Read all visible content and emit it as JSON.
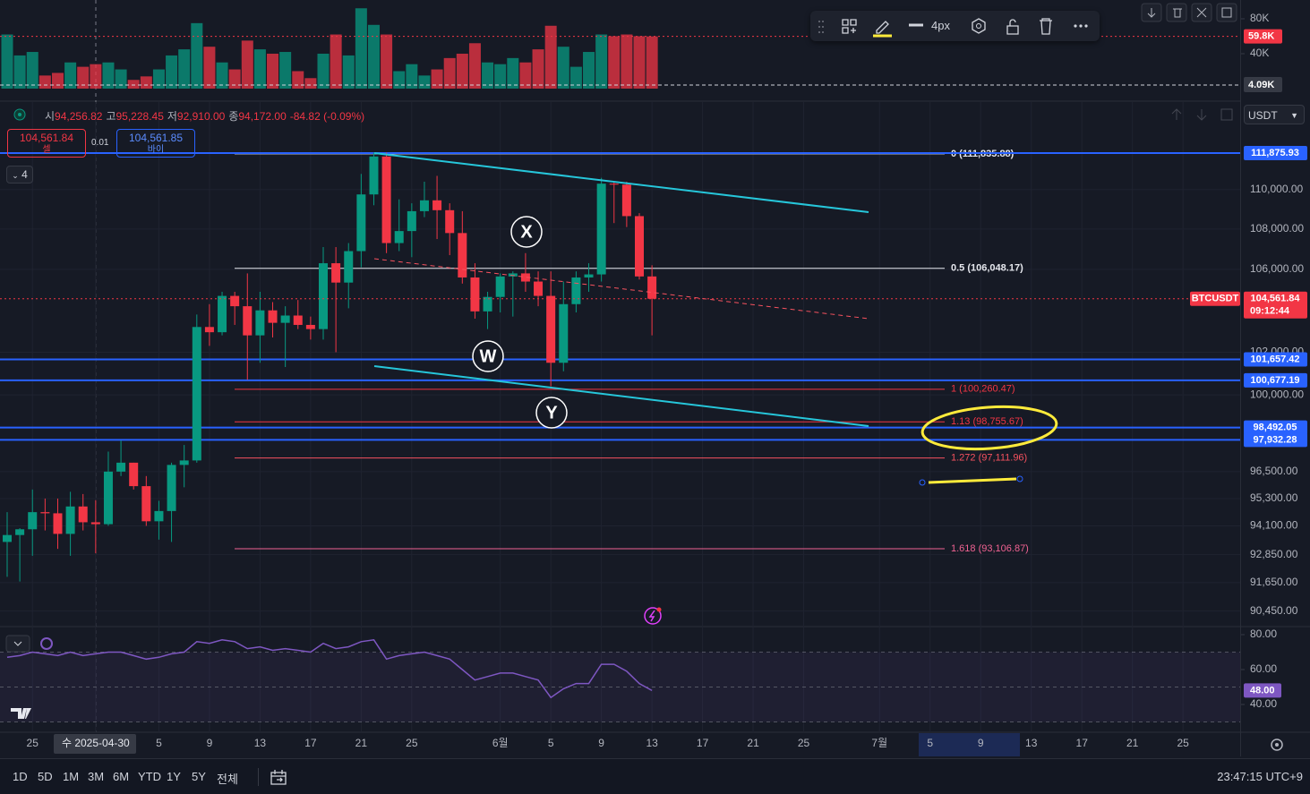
{
  "toolbar": {
    "width_label": "4px"
  },
  "legend": {
    "items": [
      {
        "key": "시",
        "value": "94,256.82"
      },
      {
        "key": "고",
        "value": "95,228.45"
      },
      {
        "key": "저",
        "value": "92,910.00"
      },
      {
        "key": "종",
        "value": "94,172.00"
      }
    ],
    "change": "-84.82 (-0.09%)"
  },
  "trade": {
    "sell_price": "104,561.84",
    "sell_label": "셀",
    "spread": "0.01",
    "buy_price": "104,561.85",
    "buy_label": "바이"
  },
  "indicator_count": "4",
  "currency": "USDT",
  "periods": [
    "1D",
    "5D",
    "1M",
    "3M",
    "6M",
    "YTD",
    "1Y",
    "5Y",
    "전체"
  ],
  "clock": "23:47:15 UTC+9",
  "chart_data": {
    "type": "candlestick",
    "symbol": "BTCUSDT",
    "log_scale": true,
    "grid": true,
    "up_color": "#089981",
    "down_color": "#f23645",
    "categories": [
      null,
      null,
      "25",
      null,
      null,
      null,
      null,
      "수 2025-04-30",
      null,
      null,
      null,
      null,
      "5",
      null,
      null,
      null,
      "9",
      null,
      null,
      null,
      "13",
      null,
      null,
      null,
      "17",
      null,
      null,
      null,
      "21",
      null,
      null,
      null,
      "25",
      null,
      null,
      null,
      null,
      null,
      null,
      "6월",
      null,
      null,
      null,
      "5",
      null,
      null,
      null,
      "9",
      null,
      null,
      null,
      "13",
      null,
      null,
      null,
      "17",
      null,
      null,
      null,
      "21",
      null,
      null,
      null,
      "25",
      null,
      null,
      null,
      null,
      null,
      "7월",
      null,
      null,
      null,
      "5",
      null,
      null,
      null,
      "9",
      null,
      null,
      null,
      "13",
      null,
      null,
      null,
      "17",
      null,
      null,
      null,
      "21",
      null,
      null,
      null,
      "25"
    ],
    "open": [
      93400,
      93700,
      93950,
      94700,
      94650,
      93750,
      94950,
      94256.82,
      94172,
      96500,
      96900,
      95850,
      94300,
      94750,
      96800,
      97000,
      103200,
      102950,
      104700,
      104200,
      102800,
      104000,
      103400,
      103750,
      103300,
      103100,
      106300,
      105350,
      106900,
      109750,
      111700,
      107300,
      107900,
      108900,
      109450,
      108950,
      107800,
      105600,
      103950,
      104650,
      105650,
      105800,
      105400,
      104700,
      101500,
      104300,
      105600,
      105750,
      110300,
      110250,
      108650,
      105650,
      null,
      null,
      null,
      null,
      null,
      null,
      null,
      null,
      null,
      null,
      null,
      null,
      null,
      null,
      null,
      null,
      null,
      null,
      null,
      null,
      null,
      null,
      null,
      null,
      null,
      null,
      null,
      null,
      null,
      null,
      null,
      null,
      null,
      null,
      null,
      null,
      null,
      null,
      null,
      null,
      null,
      null
    ],
    "high": [
      94700,
      94000,
      95700,
      95300,
      95300,
      95600,
      95500,
      95228.45,
      97400,
      97900,
      96900,
      96300,
      95200,
      96900,
      97700,
      103800,
      104300,
      104900,
      104900,
      105800,
      104900,
      104400,
      104200,
      104500,
      103700,
      107100,
      107100,
      107300,
      110800,
      111900,
      111900,
      109500,
      109300,
      110400,
      110700,
      109300,
      108900,
      106300,
      104900,
      105800,
      105900,
      106800,
      105900,
      105900,
      105400,
      105900,
      106300,
      110600,
      110400,
      110400,
      108800,
      106200,
      null,
      null,
      null,
      null,
      null,
      null,
      null,
      null,
      null,
      null,
      null,
      null,
      null,
      null,
      null,
      null,
      null,
      null,
      null,
      null,
      null,
      null,
      null,
      null,
      null,
      null,
      null,
      null,
      null,
      null,
      null,
      null,
      null,
      null,
      null,
      null,
      null,
      null,
      null,
      null,
      null,
      null
    ],
    "low": [
      91900,
      91700,
      92800,
      93900,
      93100,
      92800,
      93900,
      92910,
      94100,
      96300,
      95700,
      94100,
      93500,
      93400,
      95800,
      96900,
      102300,
      102800,
      103300,
      100700,
      101500,
      102700,
      101300,
      103100,
      102600,
      102600,
      102000,
      104100,
      106100,
      109200,
      106800,
      106900,
      106600,
      108600,
      107500,
      106700,
      105300,
      103600,
      103100,
      103900,
      103700,
      104900,
      104200,
      100400,
      101100,
      103900,
      104900,
      105400,
      108300,
      108100,
      105500,
      102800,
      null,
      null,
      null,
      null,
      null,
      null,
      null,
      null,
      null,
      null,
      null,
      null,
      null,
      null,
      null,
      null,
      null,
      null,
      null,
      null,
      null,
      null,
      null,
      null,
      null,
      null,
      null,
      null,
      null,
      null,
      null,
      null,
      null,
      null,
      null,
      null,
      null,
      null,
      null,
      null,
      null,
      null
    ],
    "close": [
      93700,
      93950,
      94700,
      94650,
      93750,
      94950,
      94256.82,
      94172,
      96500,
      96900,
      95850,
      94300,
      94750,
      96800,
      97000,
      103200,
      102950,
      104700,
      104200,
      102800,
      104000,
      103400,
      103750,
      103300,
      103100,
      106300,
      105350,
      106900,
      109750,
      111700,
      107300,
      107900,
      108900,
      109450,
      108950,
      107800,
      105600,
      103950,
      104650,
      105650,
      105800,
      105400,
      104700,
      101500,
      104300,
      105600,
      105750,
      110300,
      110250,
      108650,
      105650,
      104561.84,
      null,
      null,
      null,
      null,
      null,
      null,
      null,
      null,
      null,
      null,
      null,
      null,
      null,
      null,
      null,
      null,
      null,
      null,
      null,
      null,
      null,
      null,
      null,
      null,
      null,
      null,
      null,
      null,
      null,
      null,
      null,
      null,
      null,
      null,
      null,
      null,
      null,
      null,
      null,
      null,
      null,
      null
    ],
    "ylim": [
      89800,
      113800
    ],
    "yticks": [
      {
        "value": 110000,
        "label": "110,000.00"
      },
      {
        "value": 108000,
        "label": "108,000.00"
      },
      {
        "value": 106000,
        "label": "106,000.00"
      },
      {
        "value": 102000,
        "label": "102,000.00"
      },
      {
        "value": 100000,
        "label": "100,000.00"
      },
      {
        "value": 96500,
        "label": "96,500.00"
      },
      {
        "value": 95300,
        "label": "95,300.00"
      },
      {
        "value": 94100,
        "label": "94,100.00"
      },
      {
        "value": 92850,
        "label": "92,850.00"
      },
      {
        "value": 91650,
        "label": "91,650.00"
      },
      {
        "value": 90450,
        "label": "90,450.00"
      }
    ],
    "last_price": {
      "value": 104561.84,
      "label": "104,561.84"
    },
    "countdown": "09:12:44",
    "levels": [
      {
        "value": 111875.93,
        "label": "111,875.93"
      },
      {
        "value": 101657.42,
        "label": "101,657.42"
      },
      {
        "value": 100677.19,
        "label": "100,677.19"
      },
      {
        "value": 98492.05,
        "label": "98,492.05"
      },
      {
        "value": 97932.28,
        "label": "97,932.28"
      }
    ],
    "level_color": "#2962ff",
    "fib": [
      {
        "value": 111835.88,
        "label": "0 (111,835.88)",
        "color": "#e6e8ee"
      },
      {
        "value": 106048.17,
        "label": "0.5 (106,048.17)",
        "color": "#e6e8ee"
      },
      {
        "value": 100260.47,
        "label": "1 (100,260.47)",
        "color": "#f23645"
      },
      {
        "value": 98755.67,
        "label": "1.13 (98,755.67)",
        "color": "#f23645"
      },
      {
        "value": 97111.96,
        "label": "1.272 (97,111.96)",
        "color": "#f7525f"
      },
      {
        "value": 93106.87,
        "label": "1.618 (93,106.87)",
        "color": "#f06292"
      }
    ],
    "wave_labels": [
      "W",
      "X",
      "Y"
    ],
    "volume": {
      "values": [
        62000,
        38000,
        42000,
        15000,
        18000,
        30000,
        25000,
        28000,
        30000,
        22000,
        10000,
        14000,
        22000,
        38000,
        45000,
        75000,
        48000,
        30000,
        22000,
        55000,
        45000,
        40000,
        42000,
        20000,
        12000,
        40000,
        62000,
        38000,
        92000,
        73000,
        62000,
        20000,
        28000,
        15000,
        22000,
        35000,
        40000,
        52000,
        30000,
        28000,
        35000,
        30000,
        45000,
        72000,
        48000,
        25000,
        42000,
        62000,
        60000,
        62000,
        60000,
        59800,
        null,
        null,
        null,
        null,
        null,
        null,
        null,
        null,
        null,
        null,
        null,
        null,
        null,
        null,
        null,
        null,
        null,
        null,
        null,
        null,
        null,
        null,
        null,
        null,
        null,
        null,
        null,
        null,
        null,
        null,
        null,
        null,
        null,
        null,
        null,
        null,
        null,
        null,
        null,
        null,
        null,
        null
      ],
      "ylim": [
        0,
        101500
      ],
      "yticks": [
        {
          "value": 80000,
          "label": "80K"
        },
        {
          "value": 40000,
          "label": "40K"
        }
      ],
      "last": {
        "value": 59800,
        "label": "59.8K"
      },
      "ma": {
        "value": 4090,
        "label": "4.09K"
      }
    },
    "rsi": {
      "values": [
        67,
        68,
        70,
        69,
        68,
        70,
        68,
        69,
        70,
        70,
        68,
        66,
        67,
        69,
        70,
        76,
        75,
        77,
        76,
        72,
        73,
        71,
        72,
        71,
        70,
        75,
        72,
        73,
        76,
        77,
        66,
        68,
        69,
        70,
        68,
        66,
        60,
        54,
        56,
        58,
        58,
        56,
        54,
        44,
        49,
        52,
        52,
        63,
        63,
        59,
        52,
        48,
        null,
        null,
        null,
        null,
        null,
        null,
        null,
        null,
        null,
        null,
        null,
        null,
        null,
        null,
        null,
        null,
        null,
        null,
        null,
        null,
        null,
        null,
        null,
        null,
        null,
        null,
        null,
        null,
        null,
        null,
        null,
        null,
        null,
        null,
        null,
        null,
        null,
        null,
        null,
        null,
        null,
        null
      ],
      "color": "#7e57c2",
      "ylim": [
        28.2,
        84.6
      ],
      "yticks": [
        {
          "value": 80,
          "label": "80.00"
        },
        {
          "value": 60,
          "label": "60.00"
        },
        {
          "value": 40,
          "label": "40.00"
        }
      ],
      "bands": [
        30,
        50,
        70
      ],
      "last": {
        "value": 48,
        "label": "48.00"
      }
    }
  }
}
